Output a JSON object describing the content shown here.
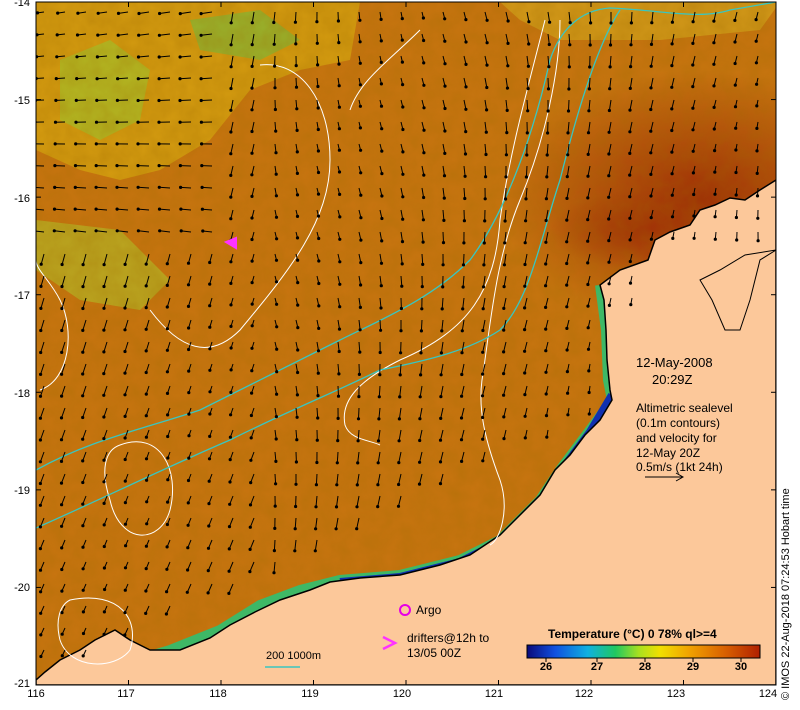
{
  "map": {
    "y_ticks": [
      "-14",
      "-15",
      "-16",
      "-17",
      "-18",
      "-19",
      "-20",
      "-21"
    ],
    "x_ticks": [
      "116",
      "117",
      "118",
      "119",
      "120",
      "121",
      "122",
      "123",
      "124"
    ],
    "lon_range": [
      116,
      124
    ],
    "lat_range": [
      -21,
      -14
    ],
    "colors": {
      "land": "#fcc89a",
      "ocean_warm": "#c06a08",
      "ocean_hot": "#9e2a06",
      "contour_line": "#ffffff",
      "isobath": "#39c6c0",
      "vector": "#000000",
      "argo": "#e600e6",
      "drifter": "#ff33ff"
    }
  },
  "annotations": {
    "date": "12-May-2008",
    "time": "20:29Z",
    "sealevel_lines": [
      "Altimetric sealevel",
      "(0.1m contours)",
      "and velocity for",
      "12-May 20Z",
      "0.5m/s (1kt 24h)"
    ],
    "scale_arrow_label": "0.5m/s (1kt 24h)"
  },
  "legend": {
    "argo_label": "Argo",
    "drifters_lines": [
      "drifters@12h to",
      "13/05 00Z"
    ],
    "isobath_label": "200  1000m"
  },
  "colorbar": {
    "title": "Temperature (°C) 0 78% ql>=4",
    "ticks": [
      "26",
      "27",
      "28",
      "29",
      "30"
    ],
    "stops": [
      "#0a0a7a",
      "#1050e0",
      "#10b0e0",
      "#20c860",
      "#a8e020",
      "#f0e000",
      "#f0a000",
      "#d86000",
      "#b02000"
    ]
  },
  "credit": "© IMOS 22-Aug-2018 07:24:53 Hobart time"
}
